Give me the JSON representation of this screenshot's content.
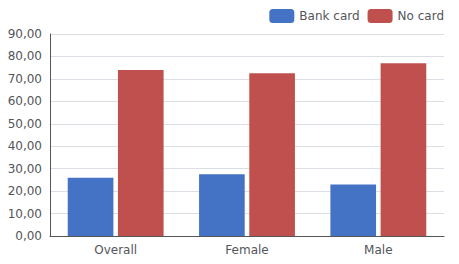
{
  "chart_data": {
    "type": "bar",
    "categories": [
      "Overall",
      "Female",
      "Male"
    ],
    "series": [
      {
        "name": "Bank card",
        "color": "#4472C4",
        "values": [
          26.0,
          27.5,
          23.0
        ]
      },
      {
        "name": "No card",
        "color": "#C0504D",
        "values": [
          74.0,
          72.5,
          77.0
        ]
      }
    ],
    "ylim": [
      0,
      90
    ],
    "yticks": [
      {
        "value": 0,
        "label": "0,00"
      },
      {
        "value": 10,
        "label": "10,00"
      },
      {
        "value": 20,
        "label": "20,00"
      },
      {
        "value": 30,
        "label": "30,00"
      },
      {
        "value": 40,
        "label": "40,00"
      },
      {
        "value": 50,
        "label": "50,00"
      },
      {
        "value": 60,
        "label": "60,00"
      },
      {
        "value": 70,
        "label": "70,00"
      },
      {
        "value": 80,
        "label": "80,00"
      },
      {
        "value": 90,
        "label": "90,00"
      }
    ],
    "grid": true,
    "legend": "upper right"
  }
}
